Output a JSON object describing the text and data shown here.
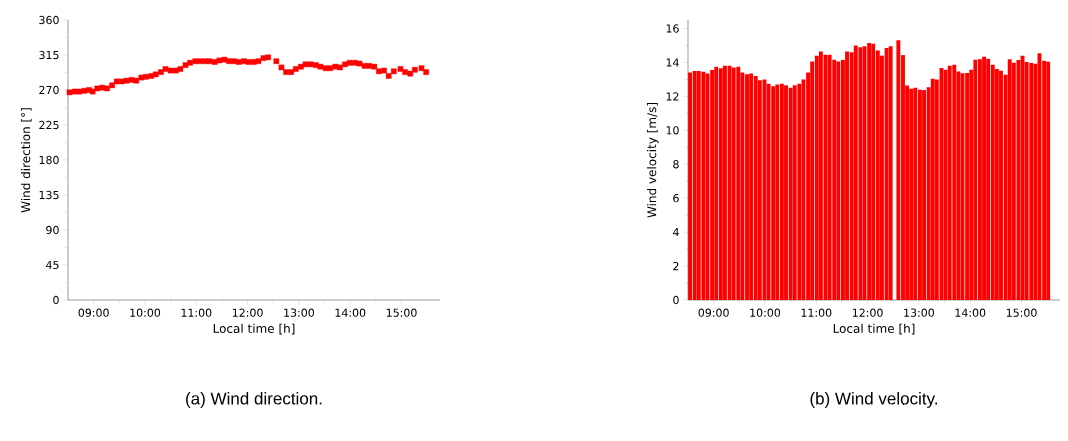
{
  "chart_data": [
    {
      "type": "scatter",
      "xlabel": "Local time [h]",
      "ylabel": "Wind direction [°]",
      "marker": "square",
      "x": [
        8.53,
        8.63,
        8.72,
        8.82,
        8.91,
        8.98,
        9.07,
        9.17,
        9.26,
        9.36,
        9.45,
        9.55,
        9.64,
        9.74,
        9.83,
        9.93,
        10.02,
        10.12,
        10.21,
        10.31,
        10.4,
        10.5,
        10.6,
        10.69,
        10.79,
        10.88,
        10.98,
        11.07,
        11.17,
        11.26,
        11.36,
        11.45,
        11.55,
        11.64,
        11.74,
        11.83,
        11.93,
        12.02,
        12.12,
        12.21,
        12.31,
        12.4,
        12.56,
        12.66,
        12.75,
        12.85,
        12.94,
        13.04,
        13.13,
        13.23,
        13.33,
        13.42,
        13.52,
        13.61,
        13.71,
        13.8,
        13.9,
        13.99,
        14.09,
        14.18,
        14.28,
        14.37,
        14.47,
        14.56,
        14.66,
        14.75,
        14.85,
        14.98,
        15.07,
        15.17,
        15.26,
        15.39,
        15.48
      ],
      "series": [
        {
          "color": "#ff0000",
          "values": [
            267,
            268,
            268,
            269,
            270,
            268,
            272,
            273,
            272,
            276,
            281,
            281,
            282,
            283,
            282,
            286,
            287,
            288,
            290,
            293,
            297,
            295,
            295,
            297,
            302,
            305,
            307,
            307,
            307,
            307,
            306,
            308,
            309,
            307,
            307,
            306,
            307,
            306,
            306,
            307,
            311,
            312,
            307,
            299,
            293,
            293,
            297,
            300,
            303,
            303,
            302,
            300,
            298,
            298,
            300,
            299,
            303,
            305,
            305,
            304,
            301,
            301,
            300,
            294,
            295,
            288,
            294,
            297,
            293,
            291,
            296,
            298,
            293
          ]
        }
      ],
      "xlim": [
        8.5,
        15.75
      ],
      "ylim": [
        0,
        360
      ],
      "xticks": [
        {
          "value": 9,
          "label": "09:00"
        },
        {
          "value": 10,
          "label": "10:00"
        },
        {
          "value": 11,
          "label": "11:00"
        },
        {
          "value": 12,
          "label": "12:00"
        },
        {
          "value": 13,
          "label": "13:00"
        },
        {
          "value": 14,
          "label": "14:00"
        },
        {
          "value": 15,
          "label": "15:00"
        }
      ],
      "yticks": [
        0,
        45,
        90,
        135,
        180,
        225,
        270,
        315,
        360
      ],
      "annotations": [
        "(a) Wind direction."
      ]
    },
    {
      "type": "bar",
      "xlabel": "Local time [h]",
      "ylabel": "Wind velocity [m/s]",
      "x": [
        8.54,
        8.63,
        8.71,
        8.8,
        8.88,
        8.97,
        9.05,
        9.14,
        9.22,
        9.31,
        9.39,
        9.48,
        9.56,
        9.65,
        9.73,
        9.82,
        9.9,
        9.99,
        10.07,
        10.16,
        10.24,
        10.33,
        10.41,
        10.5,
        10.58,
        10.67,
        10.75,
        10.84,
        10.92,
        11.01,
        11.09,
        11.18,
        11.26,
        11.35,
        11.43,
        11.52,
        11.6,
        11.69,
        11.77,
        11.86,
        11.94,
        12.03,
        12.11,
        12.2,
        12.28,
        12.37,
        12.45,
        12.6,
        12.69,
        12.77,
        12.85,
        12.93,
        13.02,
        13.1,
        13.19,
        13.27,
        13.35,
        13.44,
        13.52,
        13.6,
        13.69,
        13.77,
        13.85,
        13.94,
        14.02,
        14.1,
        14.19,
        14.27,
        14.35,
        14.44,
        14.52,
        14.6,
        14.69,
        14.77,
        14.85,
        14.94,
        15.02,
        15.1,
        15.19,
        15.27,
        15.35,
        15.44,
        15.52
      ],
      "series": [
        {
          "color": "#ff0000",
          "values": [
            13.4,
            13.5,
            13.5,
            13.45,
            13.35,
            13.55,
            13.75,
            13.65,
            13.8,
            13.8,
            13.7,
            13.75,
            13.4,
            13.3,
            13.35,
            13.2,
            12.95,
            13.0,
            12.75,
            12.6,
            12.7,
            12.75,
            12.65,
            12.5,
            12.65,
            12.75,
            13.0,
            13.4,
            14.05,
            14.4,
            14.65,
            14.45,
            14.45,
            14.15,
            14.05,
            14.15,
            14.65,
            14.6,
            15.0,
            14.9,
            14.95,
            15.15,
            15.1,
            14.7,
            14.4,
            14.85,
            14.95,
            15.3,
            14.43,
            12.64,
            12.45,
            12.5,
            12.39,
            12.37,
            12.54,
            13.03,
            12.99,
            13.67,
            13.57,
            13.81,
            13.86,
            13.46,
            13.36,
            13.38,
            13.57,
            14.16,
            14.19,
            14.33,
            14.21,
            13.86,
            13.61,
            13.51,
            13.28,
            14.19,
            13.98,
            14.14,
            14.39,
            14.02,
            13.96,
            13.92,
            14.54,
            14.1,
            14.04
          ]
        }
      ],
      "xlim": [
        8.5,
        15.75
      ],
      "ylim": [
        0,
        16.5
      ],
      "xticks": [
        {
          "value": 9,
          "label": "09:00"
        },
        {
          "value": 10,
          "label": "10:00"
        },
        {
          "value": 11,
          "label": "11:00"
        },
        {
          "value": 12,
          "label": "12:00"
        },
        {
          "value": 13,
          "label": "13:00"
        },
        {
          "value": 14,
          "label": "14:00"
        },
        {
          "value": 15,
          "label": "15:00"
        }
      ],
      "yticks": [
        0,
        2,
        4,
        6,
        8,
        10,
        12,
        14,
        16
      ],
      "annotations": [
        "(b) Wind velocity."
      ]
    }
  ]
}
